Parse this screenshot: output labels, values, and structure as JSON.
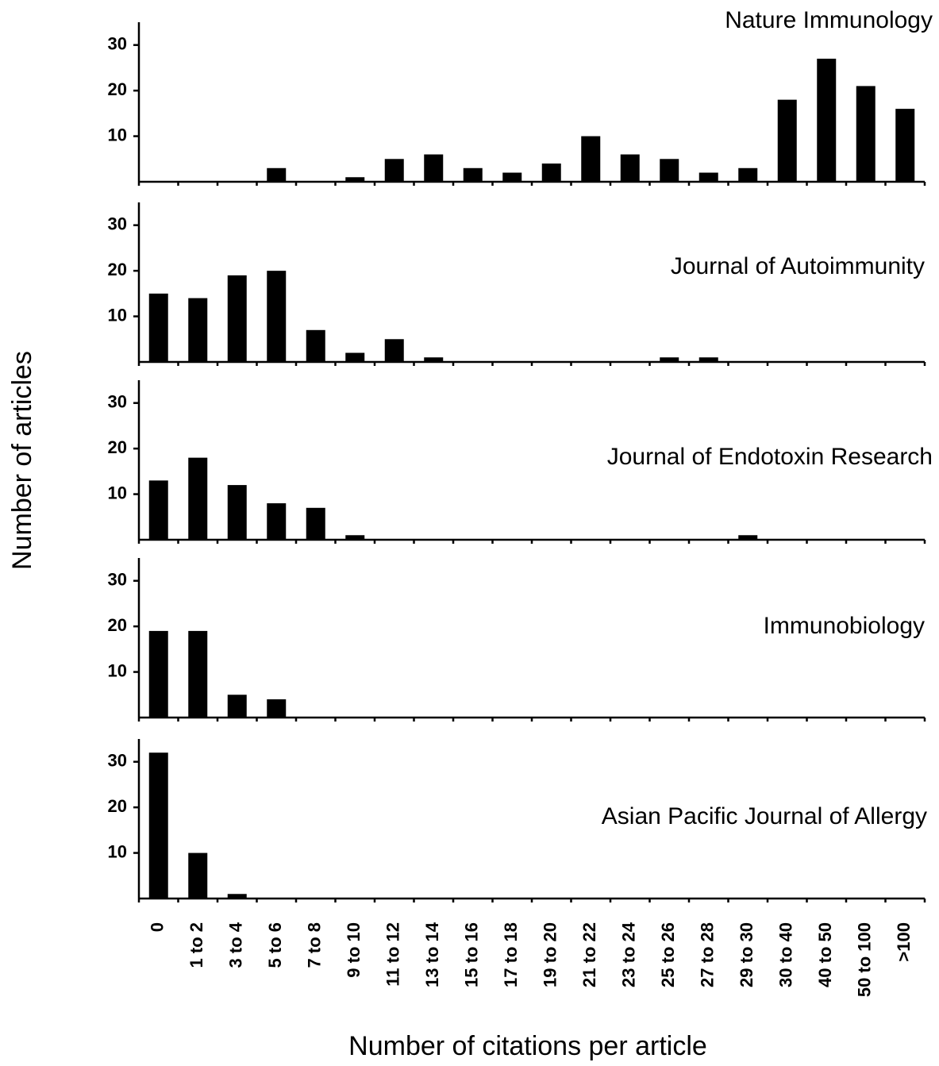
{
  "x_label": "Number of citations per article",
  "y_label": "Number of  articles",
  "categories": [
    "0",
    "1 to 2",
    "3 to 4",
    "5 to 6",
    "7 to 8",
    "9 to 10",
    "11 to 12",
    "13 to 14",
    "15 to 16",
    "17 to 18",
    "19 to 20",
    "21 to 22",
    "23 to 24",
    "25 to 26",
    "27 to 28",
    "29 to 30",
    "30 to 40",
    "40 to 50",
    "50 to 100",
    ">100"
  ],
  "chart_data": [
    {
      "type": "bar",
      "title": "Nature Immunology",
      "color": "#000000",
      "ylim": [
        0,
        35
      ],
      "yticks": [
        10,
        20,
        30
      ],
      "values": [
        0,
        0,
        0,
        3,
        0,
        1,
        5,
        6,
        3,
        2,
        4,
        10,
        6,
        5,
        2,
        3,
        18,
        27,
        21,
        16
      ]
    },
    {
      "type": "bar",
      "title": "Journal of Autoimmunity",
      "color": "#000000",
      "ylim": [
        0,
        35
      ],
      "yticks": [
        10,
        20,
        30
      ],
      "values": [
        15,
        14,
        19,
        20,
        7,
        2,
        5,
        1,
        0,
        0,
        0,
        0,
        0,
        1,
        1,
        0,
        0,
        0,
        0,
        0
      ]
    },
    {
      "type": "bar",
      "title": "Journal of Endotoxin Research",
      "color": "#000000",
      "ylim": [
        0,
        35
      ],
      "yticks": [
        10,
        20,
        30
      ],
      "values": [
        13,
        18,
        12,
        8,
        7,
        1,
        0,
        0,
        0,
        0,
        0,
        0,
        0,
        0,
        0,
        1,
        0,
        0,
        0,
        0
      ]
    },
    {
      "type": "bar",
      "title": "Immunobiology",
      "color": "#000000",
      "ylim": [
        0,
        35
      ],
      "yticks": [
        10,
        20,
        30
      ],
      "values": [
        19,
        19,
        5,
        4,
        0,
        0,
        0,
        0,
        0,
        0,
        0,
        0,
        0,
        0,
        0,
        0,
        0,
        0,
        0,
        0
      ]
    },
    {
      "type": "bar",
      "title": "Asian Pacific Journal of Allergy",
      "color": "#000000",
      "ylim": [
        0,
        35
      ],
      "yticks": [
        10,
        20,
        30
      ],
      "values": [
        32,
        10,
        1,
        0,
        0,
        0,
        0,
        0,
        0,
        0,
        0,
        0,
        0,
        0,
        0,
        0,
        0,
        0,
        0,
        0
      ]
    }
  ]
}
